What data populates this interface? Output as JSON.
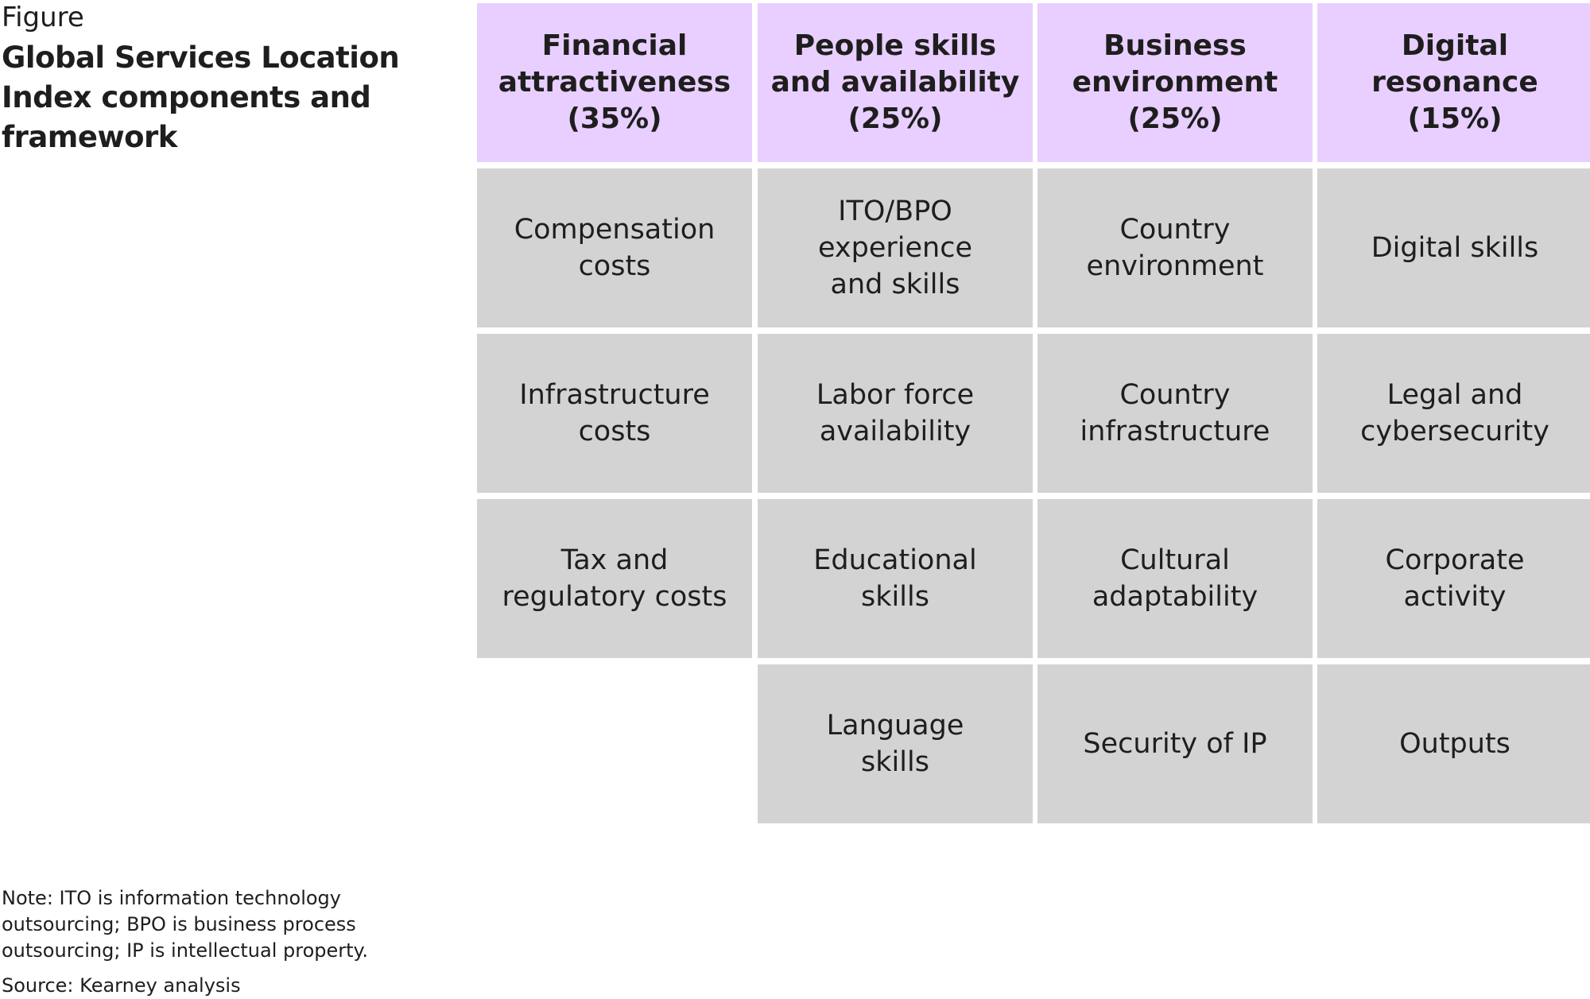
{
  "figure": {
    "label": "Figure",
    "title": "Global Services Location Index components and framework"
  },
  "columns": [
    {
      "header": "Financial\nattractiveness\n(35%)",
      "items": [
        "Compensation\ncosts",
        "Infrastructure\ncosts",
        "Tax and\nregulatory costs"
      ]
    },
    {
      "header": "People skills\nand availability\n(25%)",
      "items": [
        "ITO/BPO\nexperience\nand skills",
        "Labor force\navailability",
        "Educational\nskills",
        "Language\nskills"
      ]
    },
    {
      "header": "Business\nenvironment\n(25%)",
      "items": [
        "Country\nenvironment",
        "Country\ninfrastructure",
        "Cultural\nadaptability",
        "Security of IP"
      ]
    },
    {
      "header": "Digital\nresonance\n(15%)",
      "items": [
        "Digital skills",
        "Legal and\ncybersecurity",
        "Corporate\nactivity",
        "Outputs"
      ]
    }
  ],
  "note": "Note: ITO is information technology outsourcing; BPO is business process outsourcing; IP is intellectual property.",
  "source": "Source: Kearney analysis",
  "colors": {
    "header_fill": "#e9cfff",
    "item_fill": "#d3d3d3",
    "text": "#1e1e1e",
    "background": "#ffffff"
  }
}
